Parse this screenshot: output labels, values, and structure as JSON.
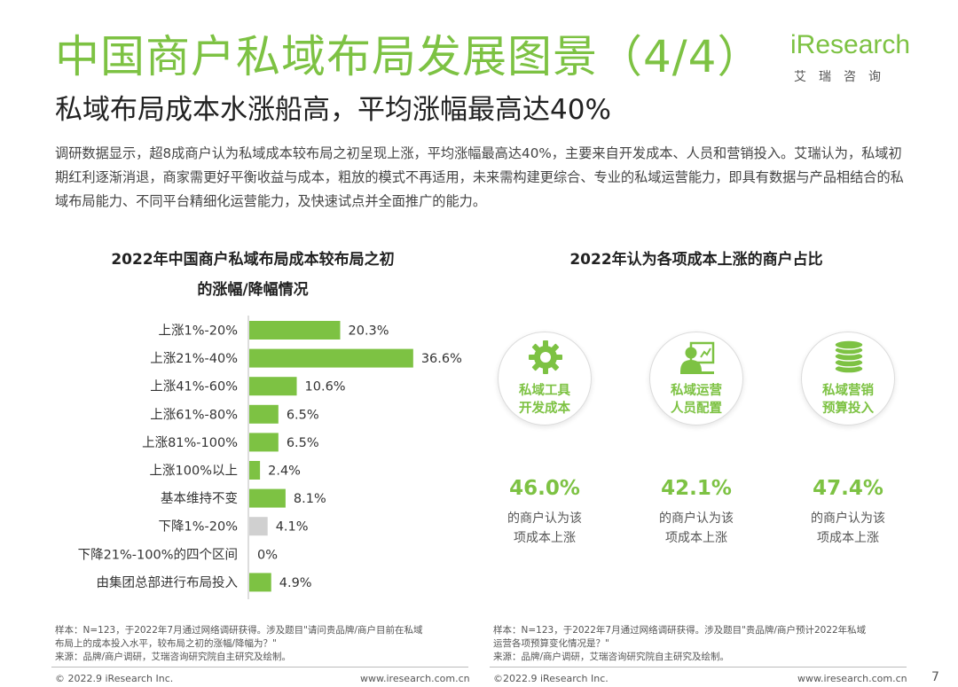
{
  "header": {
    "title": "中国商户私域布局发展图景（4/4）",
    "subtitle": "私域布局成本水涨船高，平均涨幅最高达40%",
    "logo_brand": "iResearch",
    "logo_cn": "艾瑞咨询"
  },
  "intro": "调研数据显示，超8成商户认为私域成本较布局之初呈现上涨，平均涨幅最高达40%，主要来自开发成本、人员和营销投入。艾瑞认为，私域初期红利逐渐消退，商家需更好平衡收益与成本，粗放的模式不再适用，未来需构建更综合、专业的私域运营能力，即具有数据与产品相结合的私域布局能力、不同平台精细化运营能力，及快速试点并全面推广的能力。",
  "chart_data": [
    {
      "type": "bar",
      "orientation": "horizontal",
      "title_line1": "2022年中国商户私域布局成本较布局之初",
      "title_line2": "的涨幅/降幅情况",
      "categories": [
        "上涨1%-20%",
        "上涨21%-40%",
        "上涨41%-60%",
        "上涨61%-80%",
        "上涨81%-100%",
        "上涨100%以上",
        "基本维持不变",
        "下降1%-20%",
        "下降21%-100%的四个区间",
        "由集团总部进行布局投入"
      ],
      "values": [
        20.3,
        36.6,
        10.6,
        6.5,
        6.5,
        2.4,
        8.1,
        4.1,
        0,
        4.9
      ],
      "value_labels": [
        "20.3%",
        "36.6%",
        "10.6%",
        "6.5%",
        "6.5%",
        "2.4%",
        "8.1%",
        "4.1%",
        "0%",
        "4.9%"
      ],
      "bar_colors": [
        "#7dc243",
        "#7dc243",
        "#7dc243",
        "#7dc243",
        "#7dc243",
        "#7dc243",
        "#7dc243",
        "#d0d0d0",
        "#7dc243",
        "#7dc243"
      ],
      "xlim": [
        0,
        40
      ],
      "grid": false,
      "legend": "none"
    },
    {
      "type": "table",
      "title": "2022年认为各项成本上涨的商户占比",
      "items": [
        {
          "icon": "gear-icon",
          "label_line1": "私域工具",
          "label_line2": "开发成本",
          "value": "46.0%",
          "desc_line1": "的商户认为该",
          "desc_line2": "项成本上涨"
        },
        {
          "icon": "staff-icon",
          "label_line1": "私域运营",
          "label_line2": "人员配置",
          "value": "42.1%",
          "desc_line1": "的商户认为该",
          "desc_line2": "项成本上涨"
        },
        {
          "icon": "coins-icon",
          "label_line1": "私域营销",
          "label_line2": "预算投入",
          "value": "47.4%",
          "desc_line1": "的商户认为该",
          "desc_line2": "项成本上涨"
        }
      ]
    }
  ],
  "notes": {
    "left_line1": "样本：N=123，于2022年7月通过网络调研获得。涉及题目\"请问贵品牌/商户目前在私域",
    "left_line2": "布局上的成本投入水平，较布局之初的涨幅/降幅为？\"",
    "left_line3": "来源：品牌/商户调研，艾瑞咨询研究院自主研究及绘制。",
    "right_line1": "样本：N=123，于2022年7月通过网络调研获得。涉及题目\"贵品牌/商户预计2022年私域",
    "right_line2": "运营各项预算变化情况是？\"",
    "right_line3": "来源：品牌/商户调研，艾瑞咨询研究院自主研究及绘制。"
  },
  "footer": {
    "copyright_left": "© 2022.9 iResearch Inc.",
    "url_left": "www.iresearch.com.cn",
    "copyright_right": "©2022.9 iResearch Inc.",
    "url_right": "www.iresearch.com.cn",
    "page_number": "7"
  },
  "colors": {
    "accent": "#7dc243",
    "neutral_bar": "#d0d0d0"
  }
}
